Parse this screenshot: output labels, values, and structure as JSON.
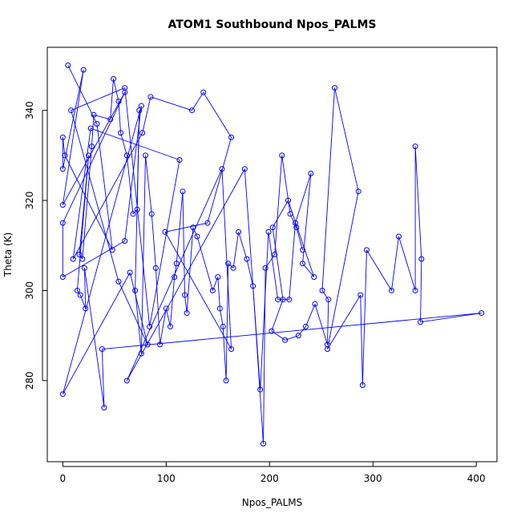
{
  "chart_data": {
    "type": "scatter",
    "title": "ATOM1 Southbound Npos_PALMS",
    "xlabel": "Npos_PALMS",
    "ylabel": "Theta (K)",
    "xlim": [
      -15,
      420
    ],
    "ylim": [
      262,
      354
    ],
    "x_ticks": [
      0,
      100,
      200,
      300,
      400
    ],
    "y_ticks": [
      280,
      300,
      320,
      340
    ],
    "grid": false,
    "points_connected": true,
    "color": "#0000ff",
    "points": [
      [
        5,
        350
      ],
      [
        33,
        337
      ],
      [
        48,
        309
      ],
      [
        2,
        330
      ],
      [
        0,
        334
      ],
      [
        0,
        327
      ],
      [
        20,
        349
      ],
      [
        0,
        319
      ],
      [
        60,
        344
      ],
      [
        0,
        315
      ],
      [
        0,
        303
      ],
      [
        60,
        311
      ],
      [
        76,
        341
      ],
      [
        0,
        277
      ],
      [
        65,
        304
      ],
      [
        82,
        288
      ],
      [
        54,
        302
      ],
      [
        8,
        340
      ],
      [
        60,
        345
      ],
      [
        84,
        292
      ],
      [
        113,
        329
      ],
      [
        27,
        336
      ],
      [
        10,
        307
      ],
      [
        77,
        335
      ],
      [
        85,
        343
      ],
      [
        125,
        340
      ],
      [
        136,
        344
      ],
      [
        163,
        334
      ],
      [
        140,
        315
      ],
      [
        99,
        313
      ],
      [
        163,
        287
      ],
      [
        154,
        327
      ],
      [
        62,
        280
      ],
      [
        176,
        327
      ],
      [
        191,
        278
      ],
      [
        199,
        313
      ],
      [
        208,
        298
      ],
      [
        219,
        298
      ],
      [
        225,
        315
      ],
      [
        240,
        326
      ],
      [
        232,
        306
      ],
      [
        243,
        303
      ],
      [
        218,
        320
      ],
      [
        203,
        314
      ],
      [
        213,
        298
      ],
      [
        202,
        291
      ],
      [
        215,
        289
      ],
      [
        228,
        290
      ],
      [
        235,
        292
      ],
      [
        244,
        297
      ],
      [
        256,
        288
      ],
      [
        257,
        298
      ],
      [
        251,
        300
      ],
      [
        263,
        345
      ],
      [
        286,
        322
      ],
      [
        256,
        287
      ],
      [
        288,
        299
      ],
      [
        290,
        279
      ],
      [
        294,
        309
      ],
      [
        318,
        300
      ],
      [
        325,
        312
      ],
      [
        341,
        300
      ],
      [
        341,
        332
      ],
      [
        347,
        307
      ],
      [
        346,
        293
      ],
      [
        405,
        295
      ],
      [
        38,
        287
      ],
      [
        40,
        274
      ],
      [
        21,
        305
      ],
      [
        22,
        296
      ],
      [
        17,
        299
      ],
      [
        14,
        300
      ],
      [
        25,
        330
      ],
      [
        16,
        308
      ],
      [
        19,
        307
      ],
      [
        28,
        332
      ],
      [
        30,
        339
      ],
      [
        46,
        338
      ],
      [
        49,
        347
      ],
      [
        54,
        342
      ],
      [
        56,
        335
      ],
      [
        62,
        330
      ],
      [
        68,
        317
      ],
      [
        72,
        318
      ],
      [
        74,
        340
      ],
      [
        70,
        300
      ],
      [
        76,
        286
      ],
      [
        80,
        330
      ],
      [
        86,
        317
      ],
      [
        90,
        305
      ],
      [
        94,
        288
      ],
      [
        100,
        296
      ],
      [
        104,
        292
      ],
      [
        108,
        303
      ],
      [
        110,
        306
      ],
      [
        116,
        322
      ],
      [
        118,
        299
      ],
      [
        120,
        295
      ],
      [
        126,
        314
      ],
      [
        130,
        312
      ],
      [
        145,
        300
      ],
      [
        150,
        303
      ],
      [
        152,
        296
      ],
      [
        155,
        292
      ],
      [
        158,
        280
      ],
      [
        160,
        306
      ],
      [
        165,
        305
      ],
      [
        170,
        313
      ],
      [
        178,
        307
      ],
      [
        184,
        301
      ],
      [
        194,
        266
      ],
      [
        196,
        305
      ],
      [
        205,
        308
      ],
      [
        212,
        330
      ],
      [
        220,
        317
      ],
      [
        226,
        314
      ],
      [
        232,
        309
      ]
    ]
  }
}
